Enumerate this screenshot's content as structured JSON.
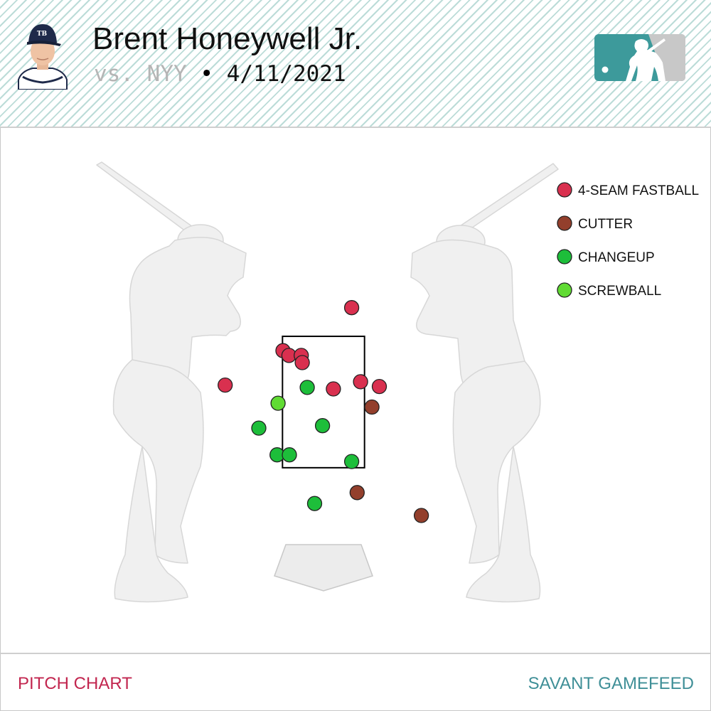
{
  "header": {
    "player_name": "Brent Honeywell Jr.",
    "opponent": "vs. NYY",
    "separator": " • ",
    "game_date": "4/11/2021"
  },
  "footer": {
    "left_label": "PITCH CHART",
    "right_label": "SAVANT GAMEFEED"
  },
  "colors": {
    "4-SEAM FASTBALL": "#d9304f",
    "CUTTER": "#933f2c",
    "CHANGEUP": "#1dbe3a",
    "SCREWBALL": "#60db33",
    "zone_stroke": "#000000",
    "silhouette": "#f0f0f0"
  },
  "icons": {
    "headshot": "player-headshot-icon",
    "logo": "mlb-logo-icon"
  },
  "chart_data": {
    "type": "scatter",
    "title": "",
    "xlabel": "",
    "ylabel": "",
    "xlim": [
      -2.5,
      2.5
    ],
    "ylim": [
      0,
      5
    ],
    "grid": false,
    "legend": "top-right",
    "strike_zone": {
      "x": [
        -0.83,
        0.83
      ],
      "z": [
        1.55,
        4.3
      ]
    },
    "series": [
      {
        "name": "4-SEAM FASTBALL",
        "points": [
          [
            0.57,
            4.9
          ],
          [
            -0.82,
            4.0
          ],
          [
            -0.7,
            3.9
          ],
          [
            -0.45,
            3.9
          ],
          [
            -0.43,
            3.75
          ],
          [
            0.75,
            3.35
          ],
          [
            0.2,
            3.2
          ],
          [
            1.13,
            3.25
          ],
          [
            -1.99,
            3.28
          ]
        ]
      },
      {
        "name": "CUTTER",
        "points": [
          [
            0.98,
            2.82
          ],
          [
            0.68,
            1.03
          ],
          [
            1.98,
            0.55
          ]
        ]
      },
      {
        "name": "CHANGEUP",
        "points": [
          [
            -0.33,
            3.23
          ],
          [
            -1.31,
            2.38
          ],
          [
            -0.02,
            2.43
          ],
          [
            -0.94,
            1.82
          ],
          [
            -0.69,
            1.82
          ],
          [
            0.57,
            1.68
          ],
          [
            -0.18,
            0.8
          ]
        ]
      },
      {
        "name": "SCREWBALL",
        "points": [
          [
            -0.92,
            2.9
          ]
        ]
      }
    ]
  }
}
